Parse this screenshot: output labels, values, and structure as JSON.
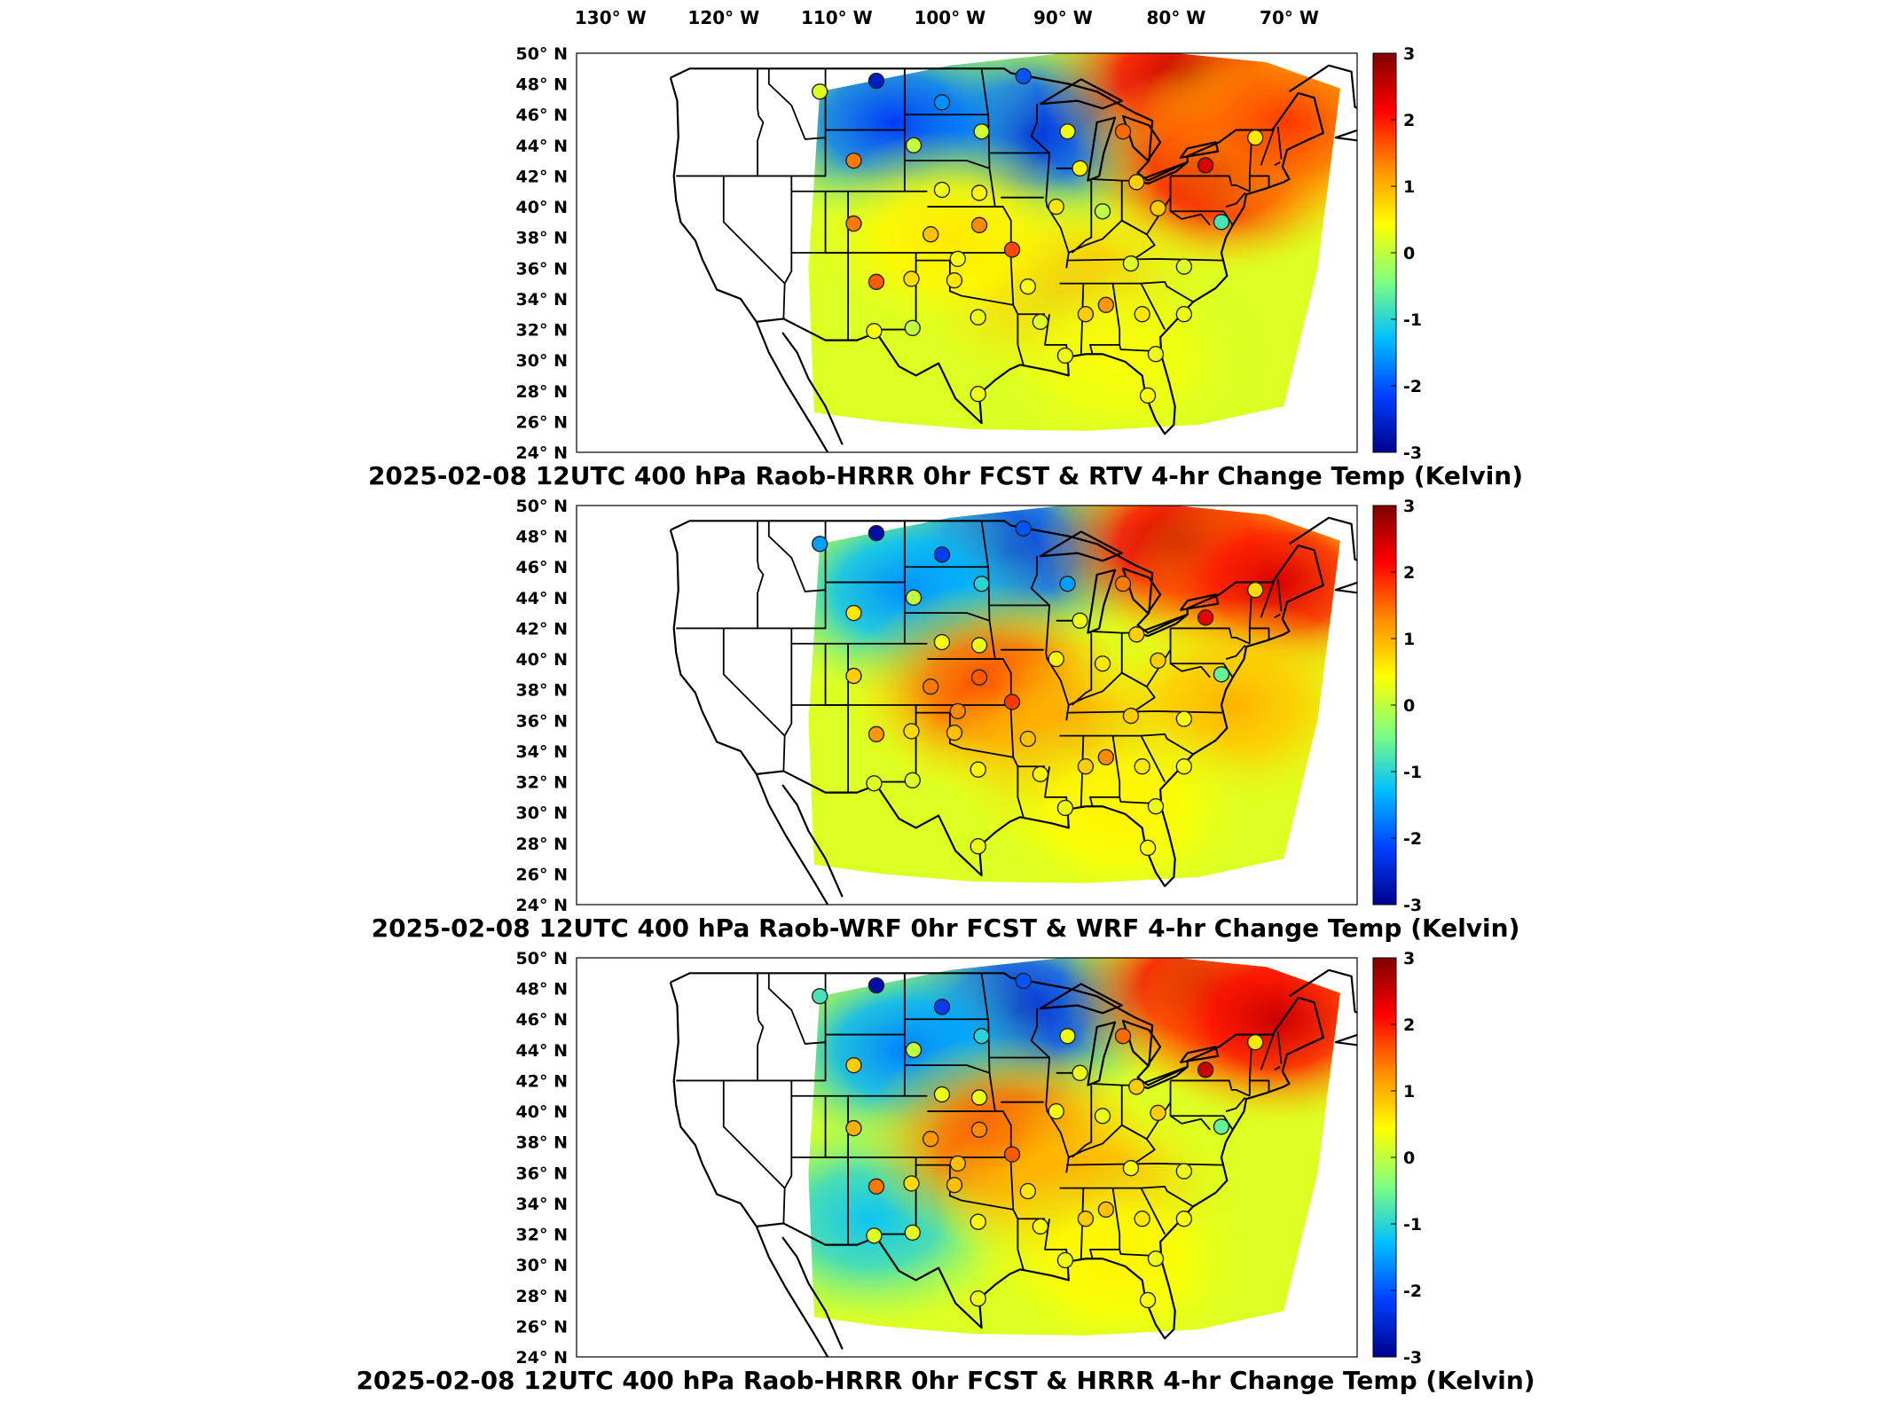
{
  "figure": {
    "top_longitude_labels": [
      "130",
      "120",
      "110",
      "100",
      "90",
      "80",
      "70"
    ],
    "top_longitude_suffix": "W",
    "latitude_labels": [
      "50",
      "48",
      "46",
      "44",
      "42",
      "40",
      "38",
      "36",
      "34",
      "32",
      "30",
      "28",
      "26",
      "24"
    ],
    "latitude_suffix": "N",
    "colorbar_ticks": [
      "3",
      "2",
      "1",
      "0",
      "-1",
      "-2",
      "-3"
    ],
    "colorbar_colors": [
      "#7f0000",
      "#ff0000",
      "#ff8c00",
      "#ffff00",
      "#7fff7f",
      "#00bfff",
      "#0040ff",
      "#00008f"
    ],
    "panels": [
      {
        "title": "2025-02-08 12UTC 400 hPa Raob-HRRR 0hr FCST & RTV 4-hr Change Temp (Kelvin)",
        "field": [
          {
            "lon": -93,
            "lat": 44.8,
            "value": -2.4,
            "r": 1.0
          },
          {
            "lon": -105,
            "lat": 45.5,
            "value": -2.2,
            "r": 1.0
          },
          {
            "lon": -79,
            "lat": 48.5,
            "value": 2.6,
            "r": 1.0
          },
          {
            "lon": -76,
            "lat": 42.5,
            "value": 2.4,
            "r": 1.0
          },
          {
            "lon": -70,
            "lat": 45.5,
            "value": 1.8,
            "r": 1.0
          },
          {
            "lon": -90,
            "lat": 34.5,
            "value": 1.0,
            "r": 1.0
          },
          {
            "lon": -100,
            "lat": 38,
            "value": 0.6,
            "r": 1.0
          },
          {
            "lon": -85,
            "lat": 30,
            "value": 0.4,
            "r": 1.0
          }
        ]
      },
      {
        "title": "2025-02-08 12UTC 400 hPa Raob-WRF 0hr FCST & WRF 4-hr Change Temp (Kelvin)",
        "field": [
          {
            "lon": -95,
            "lat": 47,
            "value": -2.4,
            "r": 1.0
          },
          {
            "lon": -104,
            "lat": 44.5,
            "value": -1.6,
            "r": 1.0
          },
          {
            "lon": -79,
            "lat": 47.5,
            "value": 2.6,
            "r": 1.0
          },
          {
            "lon": -71,
            "lat": 45,
            "value": 2.4,
            "r": 1.0
          },
          {
            "lon": -96,
            "lat": 38,
            "value": 1.8,
            "r": 1.0
          },
          {
            "lon": -88,
            "lat": 34,
            "value": 1.2,
            "r": 1.0
          },
          {
            "lon": -75,
            "lat": 37,
            "value": 1.0,
            "r": 1.0
          },
          {
            "lon": -85,
            "lat": 30,
            "value": 0.5,
            "r": 1.0
          }
        ]
      },
      {
        "title": "2025-02-08 12UTC 400 hPa Raob-HRRR 0hr FCST & HRRR 4-hr Change Temp (Kelvin)",
        "field": [
          {
            "lon": -94,
            "lat": 46.5,
            "value": -2.5,
            "r": 1.0
          },
          {
            "lon": -104,
            "lat": 44,
            "value": -1.7,
            "r": 1.0
          },
          {
            "lon": -107,
            "lat": 33,
            "value": -1.2,
            "r": 1.0
          },
          {
            "lon": -77,
            "lat": 48,
            "value": 2.6,
            "r": 1.0
          },
          {
            "lon": -71,
            "lat": 46,
            "value": 2.5,
            "r": 1.0
          },
          {
            "lon": -95,
            "lat": 38,
            "value": 1.8,
            "r": 1.0
          },
          {
            "lon": -88,
            "lat": 34.5,
            "value": 1.1,
            "r": 1.0
          },
          {
            "lon": -85,
            "lat": 30,
            "value": 0.5,
            "r": 1.0
          }
        ]
      }
    ],
    "stations": [
      {
        "lon": -111.5,
        "lat": 47.5,
        "v": [
          0.2,
          -1.5,
          -0.8
        ]
      },
      {
        "lon": -106.5,
        "lat": 48.2,
        "v": [
          -2.6,
          -2.8,
          -2.8
        ]
      },
      {
        "lon": -100.7,
        "lat": 46.8,
        "v": [
          -1.6,
          -2.2,
          -2.2
        ]
      },
      {
        "lon": -93.5,
        "lat": 48.5,
        "v": [
          -2.0,
          -2.0,
          -2.0
        ]
      },
      {
        "lon": -97.2,
        "lat": 44.9,
        "v": [
          0.1,
          -1.0,
          -1.0
        ]
      },
      {
        "lon": -89.6,
        "lat": 44.9,
        "v": [
          0.3,
          -1.5,
          0.3
        ]
      },
      {
        "lon": -103.2,
        "lat": 44.0,
        "v": [
          0.0,
          0.0,
          0.0
        ]
      },
      {
        "lon": -108.5,
        "lat": 43.0,
        "v": [
          1.4,
          0.6,
          0.8
        ]
      },
      {
        "lon": -84.7,
        "lat": 44.9,
        "v": [
          1.5,
          1.4,
          1.5
        ]
      },
      {
        "lon": -88.5,
        "lat": 42.5,
        "v": [
          0.5,
          0.3,
          0.3
        ]
      },
      {
        "lon": -77.4,
        "lat": 42.7,
        "v": [
          2.4,
          2.3,
          2.5
        ]
      },
      {
        "lon": -83.5,
        "lat": 41.6,
        "v": [
          0.8,
          0.8,
          0.8
        ]
      },
      {
        "lon": -100.7,
        "lat": 41.1,
        "v": [
          0.3,
          0.4,
          0.3
        ]
      },
      {
        "lon": -97.4,
        "lat": 40.9,
        "v": [
          0.5,
          0.3,
          0.3
        ]
      },
      {
        "lon": -90.6,
        "lat": 40.0,
        "v": [
          0.6,
          0.5,
          0.4
        ]
      },
      {
        "lon": -86.5,
        "lat": 39.7,
        "v": [
          0.0,
          0.6,
          0.3
        ]
      },
      {
        "lon": -81.6,
        "lat": 39.9,
        "v": [
          0.8,
          0.8,
          0.8
        ]
      },
      {
        "lon": -76.0,
        "lat": 39.0,
        "v": [
          -0.8,
          -0.6,
          -0.6
        ]
      },
      {
        "lon": -108.5,
        "lat": 38.9,
        "v": [
          1.4,
          0.8,
          1.0
        ]
      },
      {
        "lon": -101.7,
        "lat": 38.2,
        "v": [
          0.9,
          1.4,
          1.2
        ]
      },
      {
        "lon": -97.4,
        "lat": 38.8,
        "v": [
          1.3,
          1.6,
          1.3
        ]
      },
      {
        "lon": -94.5,
        "lat": 37.2,
        "v": [
          1.7,
          1.8,
          1.6
        ]
      },
      {
        "lon": -84.0,
        "lat": 36.3,
        "v": [
          0.2,
          0.8,
          0.4
        ]
      },
      {
        "lon": -79.3,
        "lat": 36.1,
        "v": [
          0.2,
          0.4,
          0.3
        ]
      },
      {
        "lon": -99.3,
        "lat": 36.6,
        "v": [
          0.4,
          1.3,
          0.9
        ]
      },
      {
        "lon": -106.5,
        "lat": 35.1,
        "v": [
          1.6,
          1.2,
          1.4
        ]
      },
      {
        "lon": -103.4,
        "lat": 35.3,
        "v": [
          0.7,
          0.7,
          0.7
        ]
      },
      {
        "lon": -99.6,
        "lat": 35.2,
        "v": [
          0.6,
          0.9,
          0.9
        ]
      },
      {
        "lon": -93.1,
        "lat": 34.8,
        "v": [
          0.4,
          0.9,
          0.6
        ]
      },
      {
        "lon": -86.2,
        "lat": 33.6,
        "v": [
          1.2,
          1.3,
          0.9
        ]
      },
      {
        "lon": -88.0,
        "lat": 33.0,
        "v": [
          0.8,
          0.8,
          0.8
        ]
      },
      {
        "lon": -83.0,
        "lat": 33.0,
        "v": [
          0.6,
          0.6,
          0.6
        ]
      },
      {
        "lon": -79.3,
        "lat": 33.0,
        "v": [
          0.3,
          0.4,
          0.4
        ]
      },
      {
        "lon": -97.5,
        "lat": 32.8,
        "v": [
          0.3,
          0.5,
          0.5
        ]
      },
      {
        "lon": -92.0,
        "lat": 32.5,
        "v": [
          0.2,
          0.5,
          0.4
        ]
      },
      {
        "lon": -106.7,
        "lat": 31.9,
        "v": [
          0.4,
          0.2,
          0.2
        ]
      },
      {
        "lon": -103.3,
        "lat": 32.1,
        "v": [
          0.0,
          0.2,
          0.2
        ]
      },
      {
        "lon": -89.8,
        "lat": 30.3,
        "v": [
          0.3,
          0.3,
          0.3
        ]
      },
      {
        "lon": -81.8,
        "lat": 30.4,
        "v": [
          0.3,
          0.3,
          0.3
        ]
      },
      {
        "lon": -97.5,
        "lat": 27.8,
        "v": [
          0.3,
          0.3,
          0.3
        ]
      },
      {
        "lon": -82.5,
        "lat": 27.7,
        "v": [
          0.4,
          0.4,
          0.4
        ]
      },
      {
        "lon": -73.0,
        "lat": 44.5,
        "v": [
          0.6,
          0.7,
          0.6
        ]
      }
    ]
  }
}
